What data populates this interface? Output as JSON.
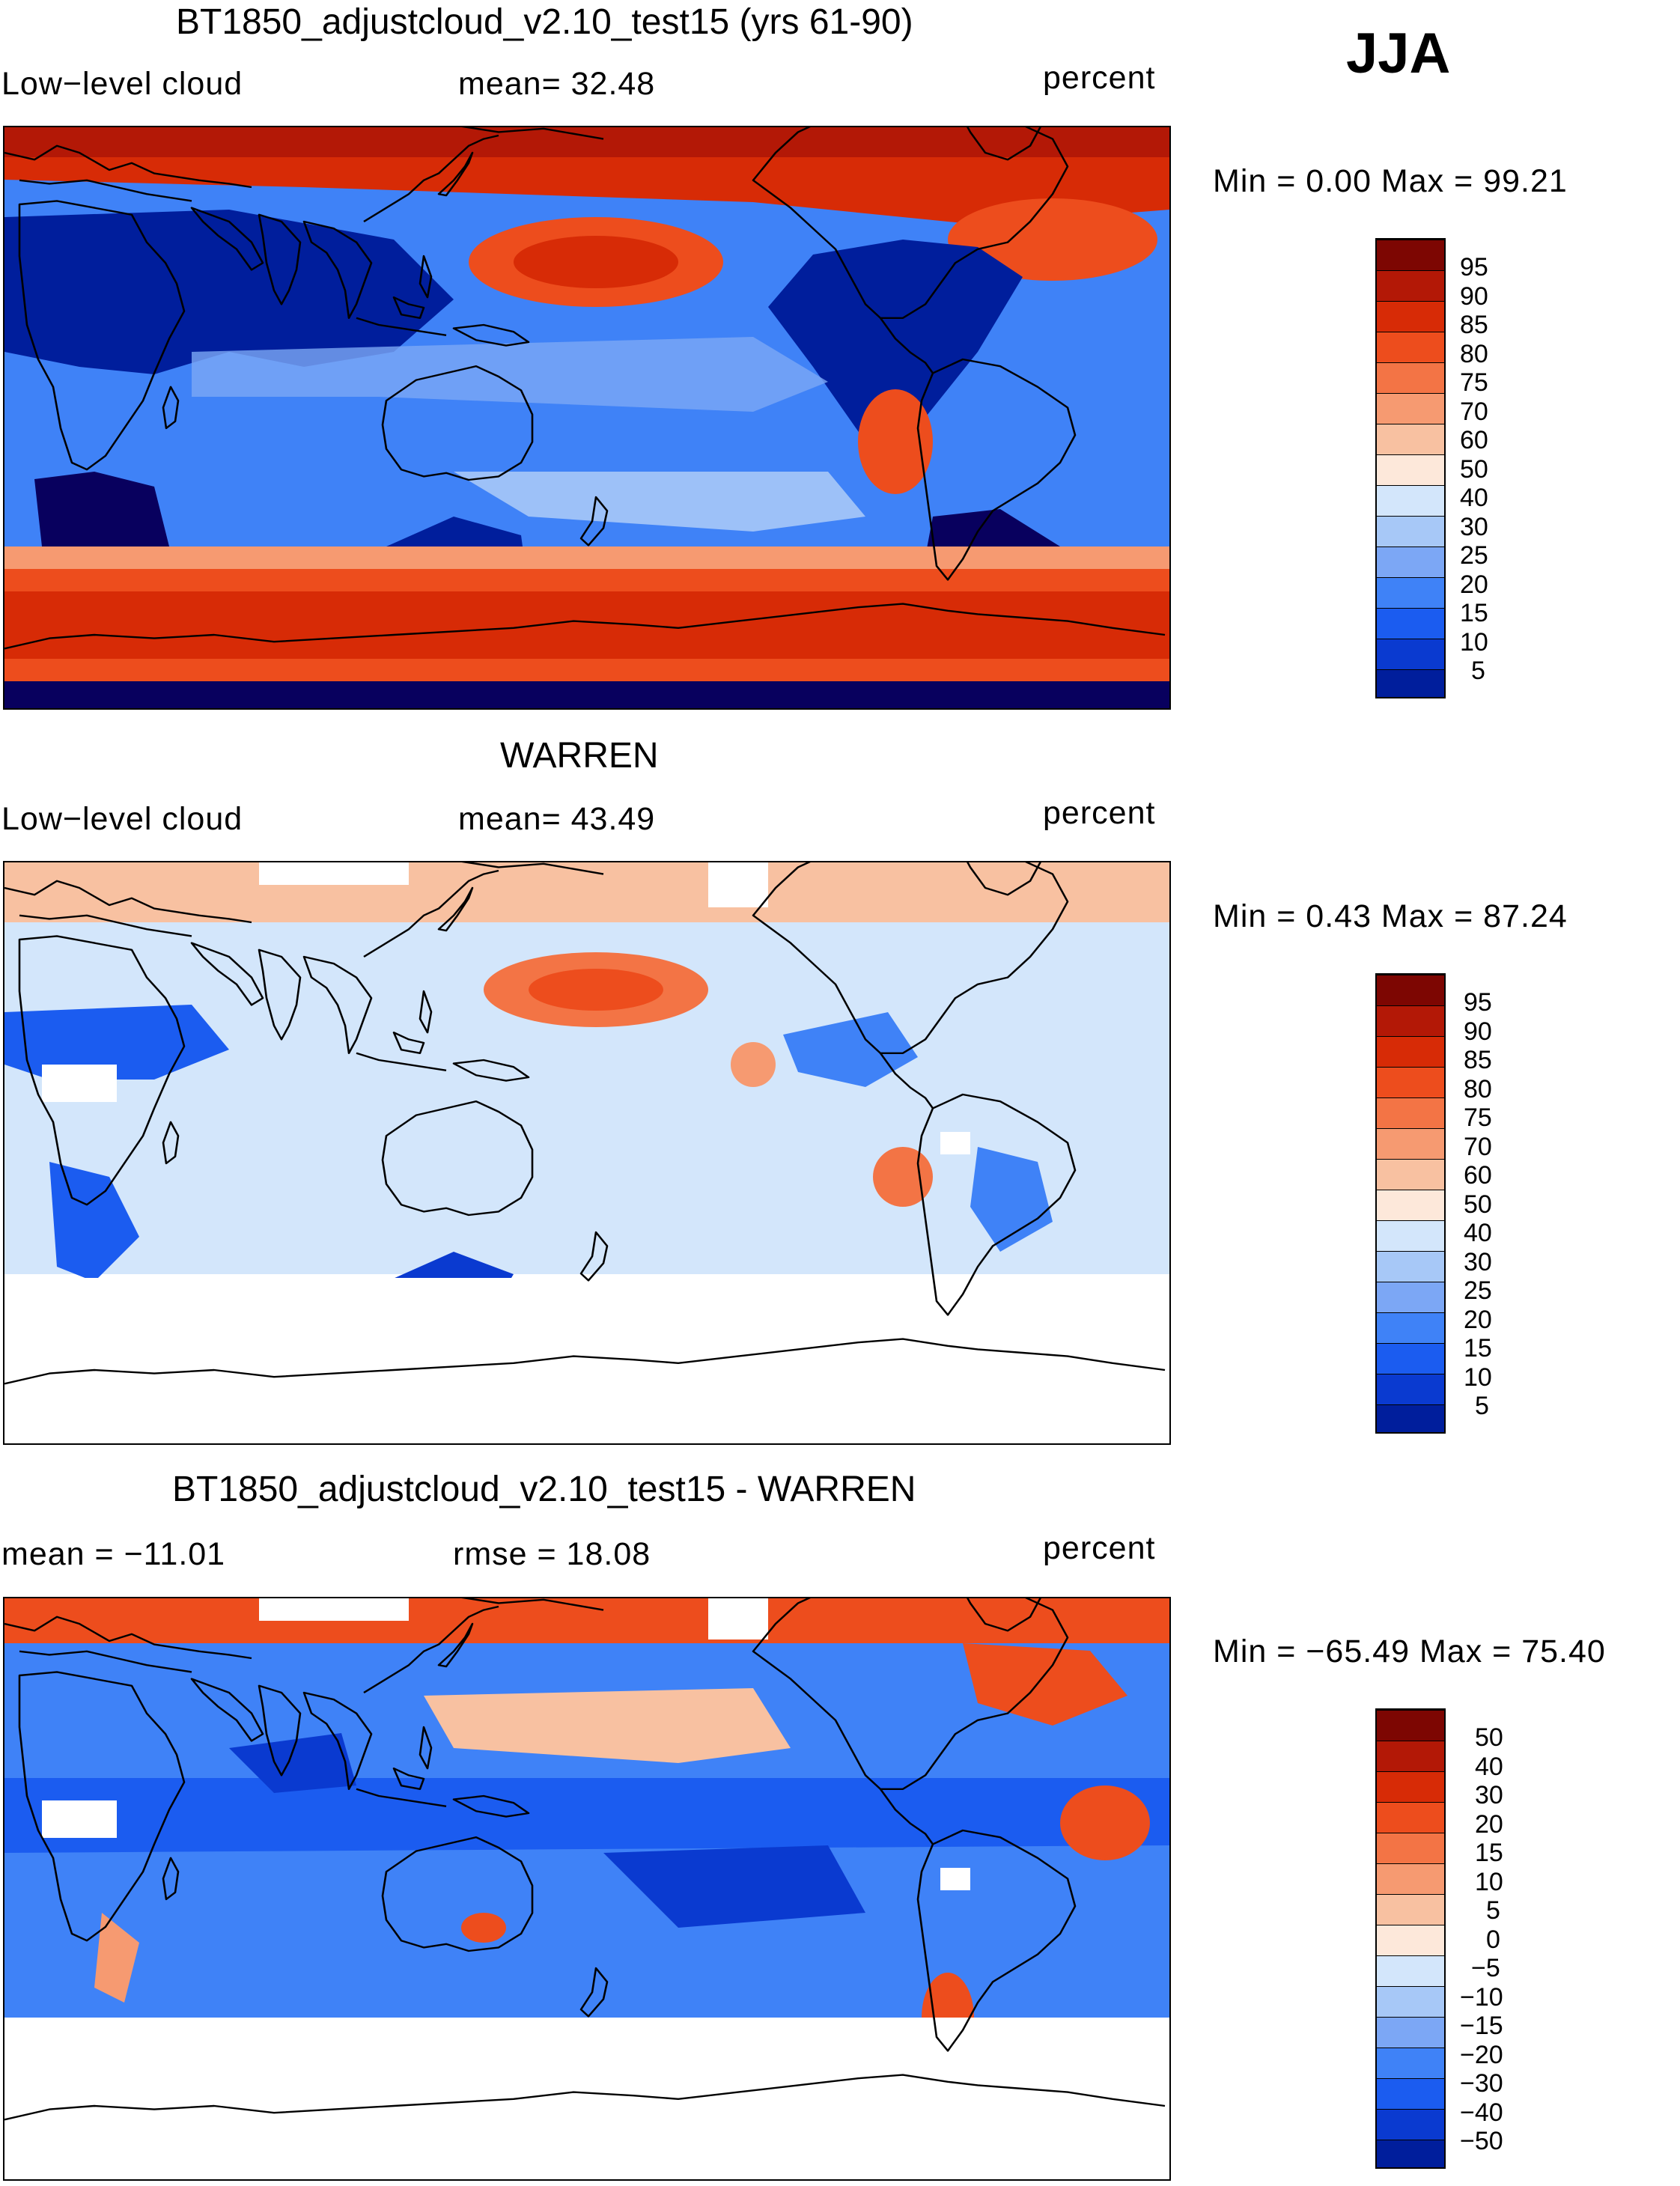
{
  "season": "JJA",
  "palette_default": [
    "#08005e",
    "#001e9c",
    "#0a3ad0",
    "#1b5cf0",
    "#3f82f7",
    "#7ca7f5",
    "#a7c8f7",
    "#d3e6fb",
    "#fde8da",
    "#f8c1a1",
    "#f69a71",
    "#f37445",
    "#ed4d1d",
    "#d72b06",
    "#b31806",
    "#7d0602"
  ],
  "palette_diff": [
    "#08005e",
    "#001e9c",
    "#0a3ad0",
    "#1b5cf0",
    "#3f82f7",
    "#7ca7f5",
    "#a7c8f7",
    "#d3e6fb",
    "#fde8da",
    "#f8c1a1",
    "#f69a71",
    "#f37445",
    "#ed4d1d",
    "#d72b06",
    "#b31806",
    "#7d0602"
  ],
  "panels": [
    {
      "id": "model",
      "title": "BT1850_adjustcloud_v2.10_test15 (yrs 61-90)",
      "left_label": "Low−level cloud",
      "mid_label": "mean=   32.48",
      "units": "percent",
      "minmax": "Min =      0.00  Max =    99.21",
      "colorbar_labels": [
        "95",
        "90",
        "85",
        "80",
        "75",
        "70",
        "60",
        "50",
        "40",
        "30",
        "25",
        "20",
        "15",
        "10",
        "5"
      ]
    },
    {
      "id": "obs",
      "title": "WARREN",
      "left_label": "Low−level cloud",
      "mid_label": "mean=   43.49",
      "units": "percent",
      "minmax": "Min =      0.43  Max =    87.24",
      "colorbar_labels": [
        "95",
        "90",
        "85",
        "80",
        "75",
        "70",
        "60",
        "50",
        "40",
        "30",
        "25",
        "20",
        "15",
        "10",
        "5"
      ]
    },
    {
      "id": "diff",
      "title": "BT1850_adjustcloud_v2.10_test15 - WARREN",
      "left_label": "mean = −11.01",
      "mid_label": "rmse =    18.08",
      "units": "percent",
      "minmax": "Min = −65.49  Max =    75.40",
      "colorbar_labels": [
        "50",
        "40",
        "30",
        "20",
        "15",
        "10",
        "5",
        "0",
        "−5",
        "−10",
        "−15",
        "−20",
        "−30",
        "−40",
        "−50"
      ]
    }
  ]
}
